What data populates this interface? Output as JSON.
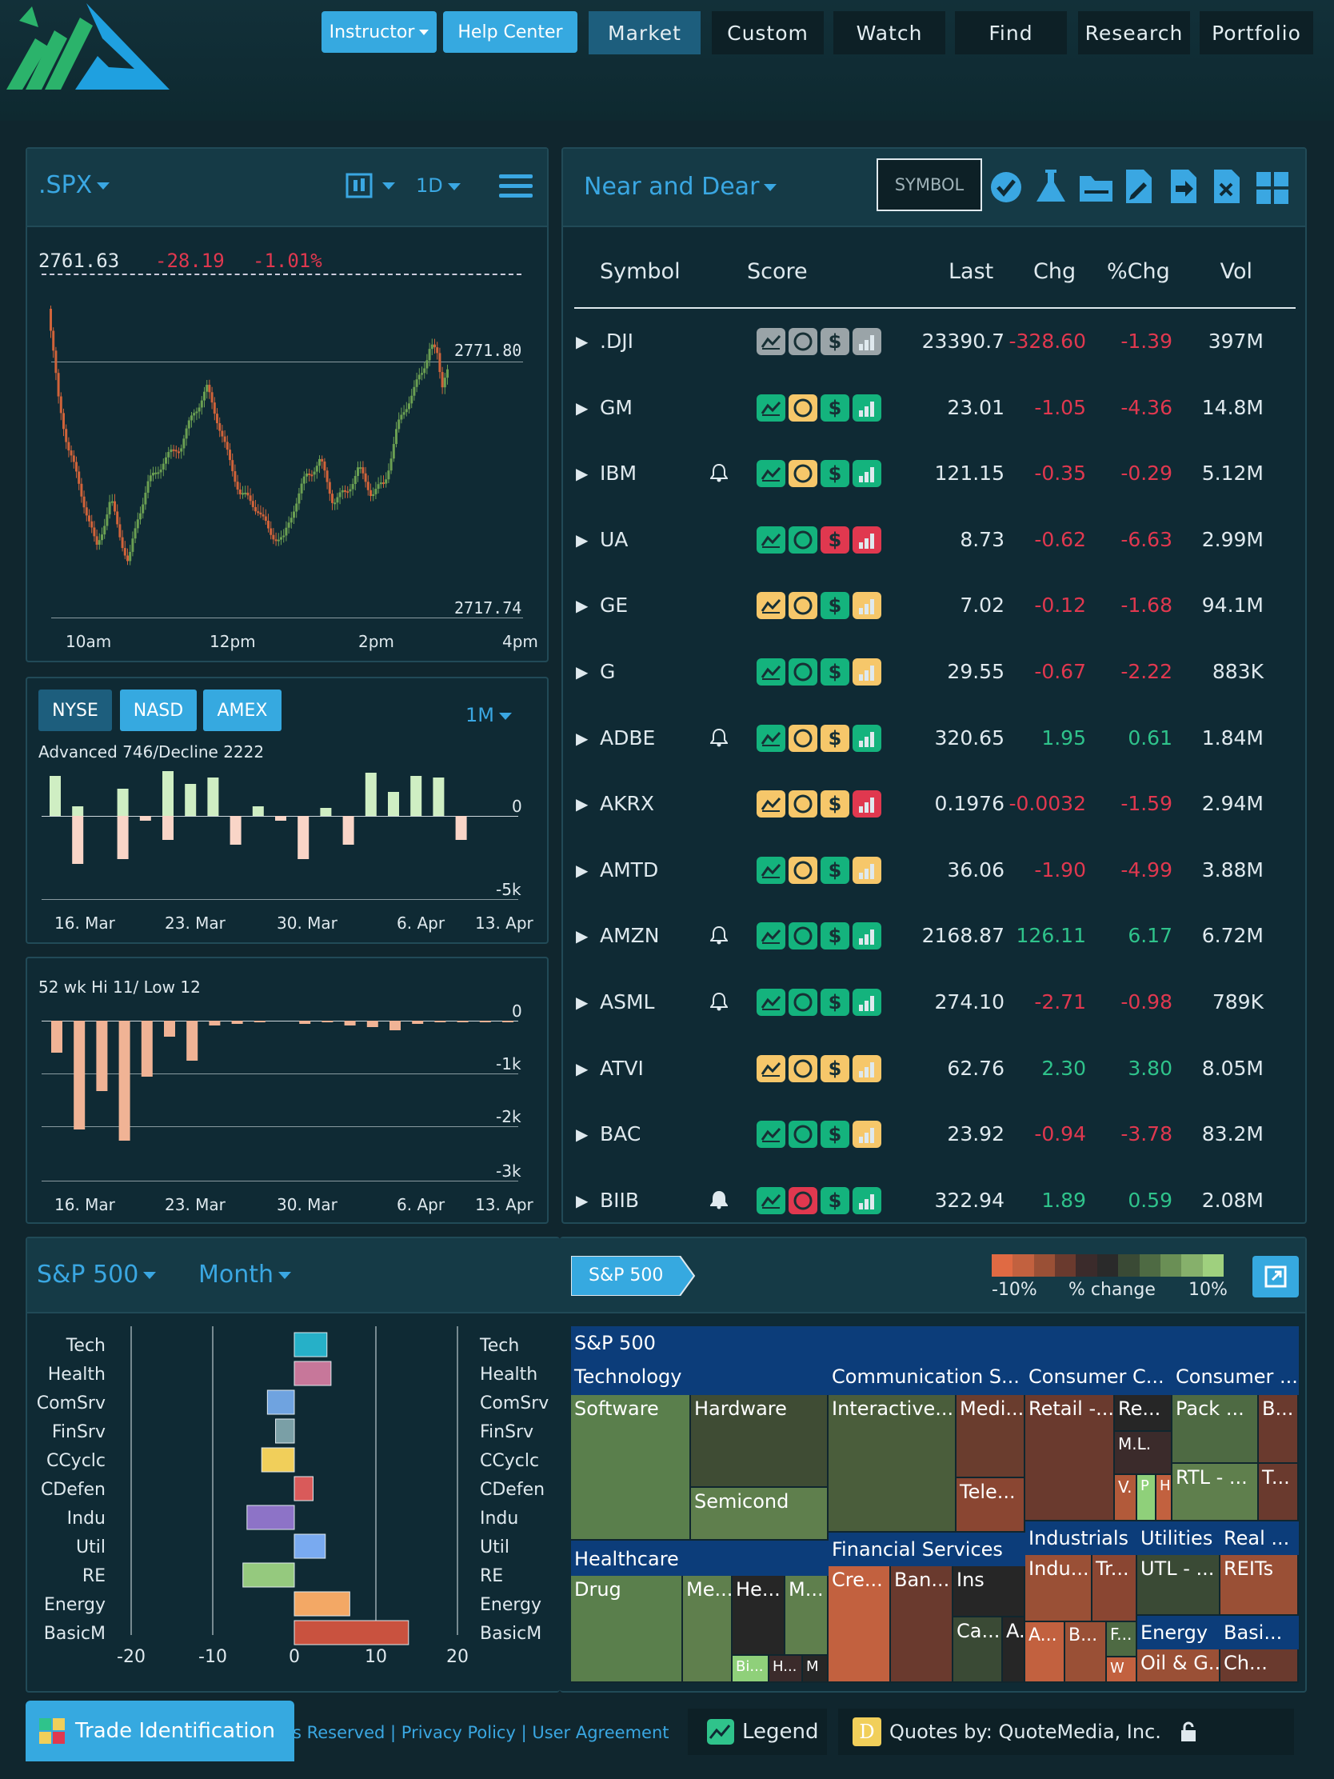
{
  "header": {
    "instructor_label": "Instructor",
    "help_label": "Help Center",
    "nav": [
      "Market",
      "Custom",
      "Watch",
      "Find",
      "Research",
      "Portfolio"
    ],
    "active_nav": "Market"
  },
  "spx": {
    "symbol": ".SPX",
    "interval": "1D",
    "last": "2761.63",
    "chg": "-28.19",
    "pct": "-1.01%",
    "hi_label": "2771.80",
    "lo_label": "2717.74",
    "x_ticks": [
      "10am",
      "12pm",
      "2pm",
      "4pm"
    ]
  },
  "breadth": {
    "tabs": [
      "NYSE",
      "NASD",
      "AMEX"
    ],
    "period": "1M",
    "title": "Advanced 746/Decline 2222",
    "y_labels": [
      "0",
      "-5k"
    ],
    "x_ticks": [
      "16. Mar",
      "23. Mar",
      "30. Mar",
      "6. Apr",
      "13. Apr"
    ]
  },
  "hilo": {
    "title": "52 wk Hi 11/ Low 12",
    "y_labels": [
      "0",
      "-1k",
      "-2k",
      "-3k"
    ],
    "x_ticks": [
      "16. Mar",
      "23. Mar",
      "30. Mar",
      "6. Apr",
      "13. Apr"
    ]
  },
  "watch": {
    "list_name": "Near and Dear",
    "symbol_button": "SYMBOL",
    "columns": [
      "Symbol",
      "Score",
      "Last",
      "Chg",
      "%Chg",
      "Vol"
    ],
    "rows": [
      {
        "sym": ".DJI",
        "bell": "",
        "last": "23390.7",
        "chg": "-328.60",
        "pct": "-1.39",
        "vol": "397M",
        "dir": "red",
        "score": [
          "gray",
          "gray",
          "gray",
          "gray"
        ]
      },
      {
        "sym": "GM",
        "bell": "",
        "last": "23.01",
        "chg": "-1.05",
        "pct": "-4.36",
        "vol": "14.8M",
        "dir": "red",
        "score": [
          "green",
          "yellow",
          "green",
          "green"
        ]
      },
      {
        "sym": "IBM",
        "bell": "outline",
        "last": "121.15",
        "chg": "-0.35",
        "pct": "-0.29",
        "vol": "5.12M",
        "dir": "red",
        "score": [
          "green",
          "yellow",
          "green",
          "green"
        ]
      },
      {
        "sym": "UA",
        "bell": "",
        "last": "8.73",
        "chg": "-0.62",
        "pct": "-6.63",
        "vol": "2.99M",
        "dir": "red",
        "score": [
          "green",
          "green",
          "red",
          "red"
        ]
      },
      {
        "sym": "GE",
        "bell": "",
        "last": "7.02",
        "chg": "-0.12",
        "pct": "-1.68",
        "vol": "94.1M",
        "dir": "red",
        "score": [
          "yellow",
          "yellow",
          "green",
          "yellow"
        ]
      },
      {
        "sym": "G",
        "bell": "",
        "last": "29.55",
        "chg": "-0.67",
        "pct": "-2.22",
        "vol": "883K",
        "dir": "red",
        "score": [
          "green",
          "green",
          "green",
          "yellow"
        ]
      },
      {
        "sym": "ADBE",
        "bell": "outline",
        "last": "320.65",
        "chg": "1.95",
        "pct": "0.61",
        "vol": "1.84M",
        "dir": "green",
        "score": [
          "green",
          "yellow",
          "yellow",
          "green"
        ]
      },
      {
        "sym": "AKRX",
        "bell": "",
        "last": "0.1976",
        "chg": "-0.0032",
        "pct": "-1.59",
        "vol": "2.94M",
        "dir": "red",
        "score": [
          "yellow",
          "yellow",
          "yellow",
          "red"
        ]
      },
      {
        "sym": "AMTD",
        "bell": "",
        "last": "36.06",
        "chg": "-1.90",
        "pct": "-4.99",
        "vol": "3.88M",
        "dir": "red",
        "score": [
          "green",
          "yellow",
          "green",
          "yellow"
        ]
      },
      {
        "sym": "AMZN",
        "bell": "outline",
        "last": "2168.87",
        "chg": "126.11",
        "pct": "6.17",
        "vol": "6.72M",
        "dir": "green",
        "score": [
          "green",
          "green",
          "green",
          "green"
        ]
      },
      {
        "sym": "ASML",
        "bell": "outline",
        "last": "274.10",
        "chg": "-2.71",
        "pct": "-0.98",
        "vol": "789K",
        "dir": "red",
        "score": [
          "green",
          "green",
          "green",
          "green"
        ]
      },
      {
        "sym": "ATVI",
        "bell": "",
        "last": "62.76",
        "chg": "2.30",
        "pct": "3.80",
        "vol": "8.05M",
        "dir": "green",
        "score": [
          "yellow",
          "yellow",
          "yellow",
          "yellow"
        ]
      },
      {
        "sym": "BAC",
        "bell": "",
        "last": "23.92",
        "chg": "-0.94",
        "pct": "-3.78",
        "vol": "83.2M",
        "dir": "red",
        "score": [
          "green",
          "green",
          "green",
          "yellow"
        ]
      },
      {
        "sym": "BIIB",
        "bell": "filled",
        "last": "322.94",
        "chg": "1.89",
        "pct": "0.59",
        "vol": "2.08M",
        "dir": "green",
        "score": [
          "green",
          "red",
          "green",
          "green"
        ]
      }
    ]
  },
  "sectors": {
    "index": "S&P 500",
    "period": "Month",
    "x_ticks": [
      "-20",
      "-10",
      "0",
      "10",
      "20"
    ]
  },
  "heatmap": {
    "crumb": "S&P 500",
    "legend_min": "-10%",
    "legend_mid": "% change",
    "legend_max": "10%",
    "legend_colors": [
      "#e06a43",
      "#c2613f",
      "#9a5036",
      "#6a3a2e",
      "#3b2b2b",
      "#2a2a2a",
      "#3a4a35",
      "#4e6a43",
      "#6a8f55",
      "#86b06b",
      "#9fd07e"
    ],
    "title": "S&P 500",
    "groups": [
      {
        "label": "Technology",
        "tiles": [
          {
            "label": "Software",
            "color": "#5a7f4c"
          },
          {
            "label": "Hardware",
            "color": "#3f4c34"
          },
          {
            "label": "Semicond",
            "color": "#5f7f4d"
          }
        ]
      },
      {
        "label": "Communication S...",
        "tiles": [
          {
            "label": "Interactive...",
            "color": "#4a5d3b"
          },
          {
            "label": "Medi...",
            "color": "#6a3d2e"
          },
          {
            "label": "Tele...",
            "color": "#8a4632"
          }
        ]
      },
      {
        "label": "Consumer C...",
        "tiles": [
          {
            "label": "Retail -...",
            "color": "#6a3a2e"
          },
          {
            "label": "Re...",
            "color": "#262626"
          },
          {
            "label": "M.L.",
            "color": "#3b2b2b"
          },
          {
            "label": "V.",
            "color": "#b25a3a"
          },
          {
            "label": "P",
            "color": "#8fd07a"
          },
          {
            "label": "H",
            "color": "#c2613f"
          }
        ]
      },
      {
        "label": "Consumer ...",
        "tiles": [
          {
            "label": "Pack ...",
            "color": "#4e6a43"
          },
          {
            "label": "B...",
            "color": "#6a3a2e"
          },
          {
            "label": "RTL - ...",
            "color": "#5f7f4d"
          },
          {
            "label": "T...",
            "color": "#6a3a2e"
          }
        ]
      },
      {
        "label": "Healthcare",
        "tiles": [
          {
            "label": "Drug",
            "color": "#5a7f4c"
          },
          {
            "label": "Me...",
            "color": "#5f7f4d"
          },
          {
            "label": "He...",
            "color": "#262626"
          },
          {
            "label": "M...",
            "color": "#5f7f4d"
          },
          {
            "label": "Bi...",
            "color": "#8fd07a"
          },
          {
            "label": "H...",
            "color": "#3b2b2b"
          },
          {
            "label": "M",
            "color": "#262626"
          }
        ]
      },
      {
        "label": "Financial Services",
        "tiles": [
          {
            "label": "Cre...",
            "color": "#c2613f"
          },
          {
            "label": "Ban...",
            "color": "#6a3a2e"
          },
          {
            "label": "Ins",
            "color": "#262626"
          },
          {
            "label": "Ca...",
            "color": "#3a4a35"
          },
          {
            "label": "A.",
            "color": "#262626"
          }
        ]
      },
      {
        "label": "Industrials",
        "tiles": [
          {
            "label": "Indu...",
            "color": "#9a5036"
          },
          {
            "label": "Tr...",
            "color": "#8a4632"
          },
          {
            "label": "A...",
            "color": "#c2613f"
          },
          {
            "label": "B...",
            "color": "#9a5036"
          },
          {
            "label": "F...",
            "color": "#4e6a43"
          },
          {
            "label": "W",
            "color": "#c2613f"
          }
        ]
      },
      {
        "label": "Utilities",
        "tiles": [
          {
            "label": "UTL - ...",
            "color": "#3a4a35"
          }
        ]
      },
      {
        "label": "Real ...",
        "tiles": [
          {
            "label": "REITs",
            "color": "#9a5036"
          }
        ]
      },
      {
        "label": "Energy",
        "tiles": [
          {
            "label": "Oil & G...",
            "color": "#9a5036"
          }
        ]
      },
      {
        "label": "Basi...",
        "tiles": [
          {
            "label": "Ch...",
            "color": "#6a3a2e"
          }
        ]
      }
    ]
  },
  "sector_chart": {
    "type": "bar",
    "orientation": "horizontal",
    "categories": [
      "Tech",
      "Health",
      "ComSrv",
      "FinSrv",
      "CCyclc",
      "CDefen",
      "Indu",
      "Util",
      "RE",
      "Energy",
      "BasicM"
    ],
    "values": [
      4.0,
      4.5,
      -3.3,
      -2.3,
      -4.0,
      2.3,
      -5.8,
      3.8,
      -6.3,
      6.8,
      14.0
    ],
    "colors": [
      "#26b0c8",
      "#c7779a",
      "#6fa3e0",
      "#7a9fa6",
      "#f1cf5a",
      "#d95a5a",
      "#8d73c7",
      "#79aaf0",
      "#95c97e",
      "#f3a865",
      "#c9523f"
    ],
    "xlim": [
      -20,
      20
    ],
    "title": "",
    "xlabel": "",
    "ylabel": ""
  },
  "footer": {
    "trade_label": "Trade Identification",
    "links_text": "s Reserved | Privacy Policy | User Agreement",
    "legend_label": "Legend",
    "quotes_label": "Quotes by: QuoteMedia, Inc."
  }
}
